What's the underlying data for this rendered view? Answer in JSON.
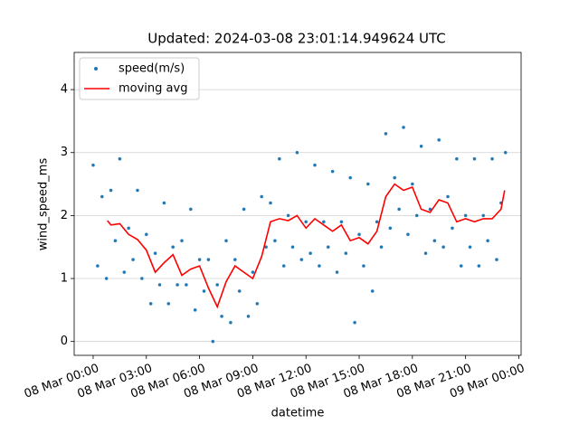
{
  "chart_data": {
    "type": "scatter",
    "title": "Updated: 2024-03-08 23:01:14.949624 UTC",
    "x_label": "datetime",
    "y_label": "wind_speed_ms",
    "xlim": [
      -1.07,
      24.13
    ],
    "ylim": [
      -0.22,
      4.59
    ],
    "xticks": [
      {
        "value": 0,
        "label": "08 Mar 00:00"
      },
      {
        "value": 3,
        "label": "08 Mar 03:00"
      },
      {
        "value": 6,
        "label": "08 Mar 06:00"
      },
      {
        "value": 9,
        "label": "08 Mar 09:00"
      },
      {
        "value": 12,
        "label": "08 Mar 12:00"
      },
      {
        "value": 15,
        "label": "08 Mar 15:00"
      },
      {
        "value": 18,
        "label": "08 Mar 18:00"
      },
      {
        "value": 21,
        "label": "08 Mar 21:00"
      },
      {
        "value": 24,
        "label": "09 Mar 00:00"
      }
    ],
    "yticks": [
      0,
      1,
      2,
      3,
      4
    ],
    "grid": "y",
    "legend": "upper left",
    "series": [
      {
        "name": "speed(m/s)",
        "type": "scatter",
        "color": "#1f77b4",
        "x": [
          0,
          0.25,
          0.5,
          0.75,
          1,
          1.25,
          1.5,
          1.75,
          2,
          2.25,
          2.5,
          2.75,
          3,
          3.25,
          3.5,
          3.75,
          4,
          4.25,
          4.5,
          4.75,
          5,
          5.25,
          5.5,
          5.75,
          6,
          6.25,
          6.5,
          6.75,
          7,
          7.25,
          7.5,
          7.75,
          8,
          8.25,
          8.5,
          8.75,
          9,
          9.25,
          9.5,
          9.75,
          10,
          10.25,
          10.5,
          10.75,
          11,
          11.25,
          11.5,
          11.75,
          12,
          12.25,
          12.5,
          12.75,
          13,
          13.25,
          13.5,
          13.75,
          14,
          14.25,
          14.5,
          14.75,
          15,
          15.25,
          15.5,
          15.75,
          16,
          16.25,
          16.5,
          16.75,
          17,
          17.25,
          17.5,
          17.75,
          18,
          18.25,
          18.5,
          18.75,
          19,
          19.25,
          19.5,
          19.75,
          20,
          20.25,
          20.5,
          20.75,
          21,
          21.25,
          21.5,
          21.75,
          22,
          22.25,
          22.5,
          22.75,
          23,
          23.25
        ],
        "values": [
          2.8,
          1.2,
          2.3,
          1.0,
          2.4,
          1.6,
          2.9,
          1.1,
          1.8,
          1.3,
          2.4,
          1.0,
          1.7,
          0.6,
          1.4,
          0.9,
          2.2,
          0.6,
          1.5,
          0.9,
          1.6,
          0.9,
          2.1,
          0.5,
          1.3,
          0.8,
          1.3,
          0.0,
          0.9,
          0.4,
          1.6,
          0.3,
          1.3,
          0.8,
          2.1,
          0.4,
          1.1,
          0.6,
          2.3,
          1.5,
          2.2,
          1.6,
          2.9,
          1.2,
          2.0,
          1.5,
          3.0,
          1.3,
          1.9,
          1.4,
          2.8,
          1.2,
          1.9,
          1.5,
          2.7,
          1.1,
          1.9,
          1.4,
          2.6,
          0.3,
          1.7,
          1.2,
          2.5,
          0.8,
          1.9,
          1.5,
          3.3,
          1.8,
          2.6,
          2.1,
          3.4,
          1.7,
          2.5,
          2.0,
          3.1,
          1.4,
          2.1,
          1.6,
          3.2,
          1.5,
          2.3,
          1.8,
          2.9,
          1.2,
          2.0,
          1.5,
          2.9,
          1.2,
          2.0,
          1.6,
          2.9,
          1.3,
          2.2,
          3.0
        ]
      },
      {
        "name": "moving avg",
        "type": "line",
        "color": "#ff0000",
        "x": [
          0.8,
          1,
          1.5,
          2,
          2.5,
          3,
          3.5,
          4,
          4.5,
          5,
          5.5,
          6,
          6.5,
          7,
          7.5,
          8,
          8.5,
          9,
          9.5,
          10,
          10.5,
          11,
          11.5,
          12,
          12.5,
          13,
          13.5,
          14,
          14.5,
          15,
          15.5,
          16,
          16.5,
          17,
          17.5,
          18,
          18.5,
          19,
          19.5,
          20,
          20.5,
          21,
          21.5,
          22,
          22.5,
          23,
          23.2
        ],
        "values": [
          1.92,
          1.85,
          1.87,
          1.7,
          1.62,
          1.45,
          1.1,
          1.25,
          1.38,
          1.05,
          1.15,
          1.2,
          0.85,
          0.55,
          0.95,
          1.2,
          1.1,
          1.0,
          1.35,
          1.9,
          1.95,
          1.92,
          2.0,
          1.8,
          1.95,
          1.85,
          1.75,
          1.85,
          1.6,
          1.65,
          1.55,
          1.75,
          2.3,
          2.5,
          2.4,
          2.45,
          2.1,
          2.05,
          2.25,
          2.2,
          1.9,
          1.95,
          1.9,
          1.95,
          1.95,
          2.1,
          2.4
        ]
      }
    ]
  }
}
